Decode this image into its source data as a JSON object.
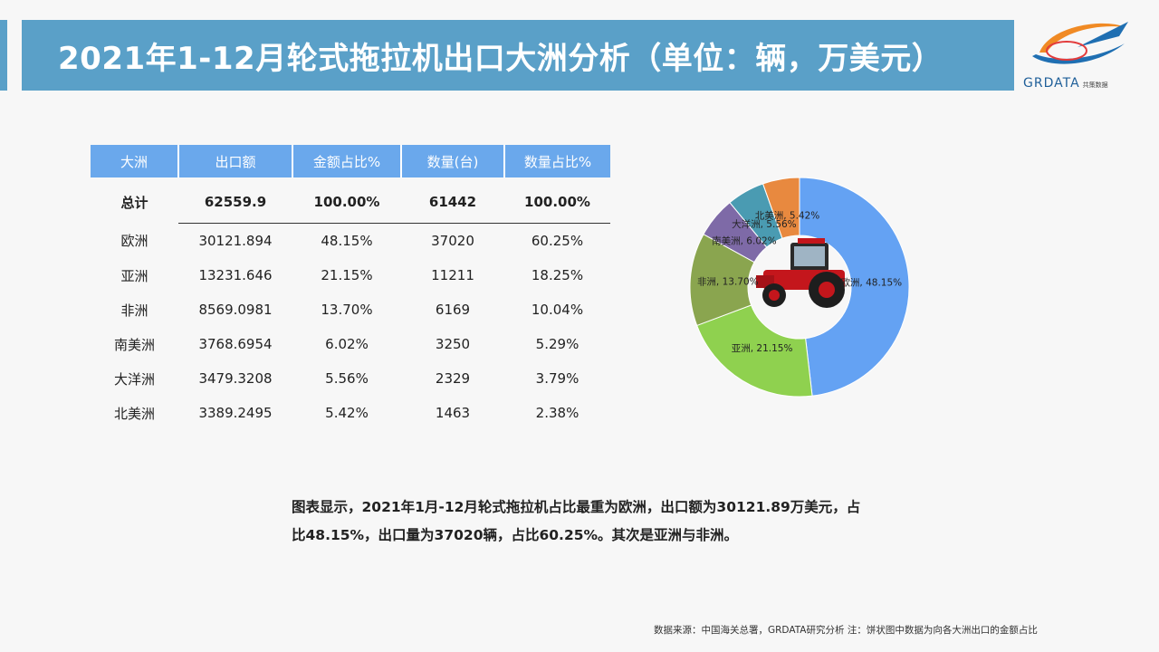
{
  "header": {
    "title": "2021年1-12月轮式拖拉机出口大洲分析（单位：辆，万美元）"
  },
  "logo": {
    "text": "GRDATA",
    "subtext": "共策数据"
  },
  "table": {
    "headers": [
      "大洲",
      "出口额",
      "金额占比%",
      "数量(台)",
      "数量占比%"
    ],
    "total": [
      "总计",
      "62559.9",
      "100.00%",
      "61442",
      "100.00%"
    ],
    "rows": [
      [
        "欧洲",
        "30121.894",
        "48.15%",
        "37020",
        "60.25%"
      ],
      [
        "亚洲",
        "13231.646",
        "21.15%",
        "11211",
        "18.25%"
      ],
      [
        "非洲",
        "8569.0981",
        "13.70%",
        "6169",
        "10.04%"
      ],
      [
        "南美洲",
        "3768.6954",
        "6.02%",
        "3250",
        "5.29%"
      ],
      [
        "大洋洲",
        "3479.3208",
        "5.56%",
        "2329",
        "3.79%"
      ],
      [
        "北美洲",
        "3389.2495",
        "5.42%",
        "1463",
        "2.38%"
      ]
    ]
  },
  "chart_data": {
    "type": "pie",
    "donut": true,
    "categories": [
      "欧洲",
      "亚洲",
      "非洲",
      "南美洲",
      "大洋洲",
      "北美洲"
    ],
    "values": [
      48.15,
      21.15,
      13.7,
      6.02,
      5.56,
      5.42
    ],
    "labels": [
      "欧洲, 48.15%",
      "亚洲, 21.15%",
      "非洲, 13.70%",
      "南美洲, 6.02%",
      "大洋洲, 5.56%",
      "北美洲, 5.42%"
    ],
    "colors": [
      "#64a2f3",
      "#8fd14f",
      "#8aa54f",
      "#7e6aa7",
      "#4a9bb2",
      "#e8893f"
    ],
    "center_image": "tractor-image"
  },
  "note": "图表显示，2021年1月-12月轮式拖拉机占比最重为欧洲，出口额为30121.89万美元，占比48.15%，出口量为37020辆，占比60.25%。其次是亚洲与非洲。",
  "source": "数据来源：中国海关总署，GRDATA研究分析  注：饼状图中数据为向各大洲出口的金额占比"
}
